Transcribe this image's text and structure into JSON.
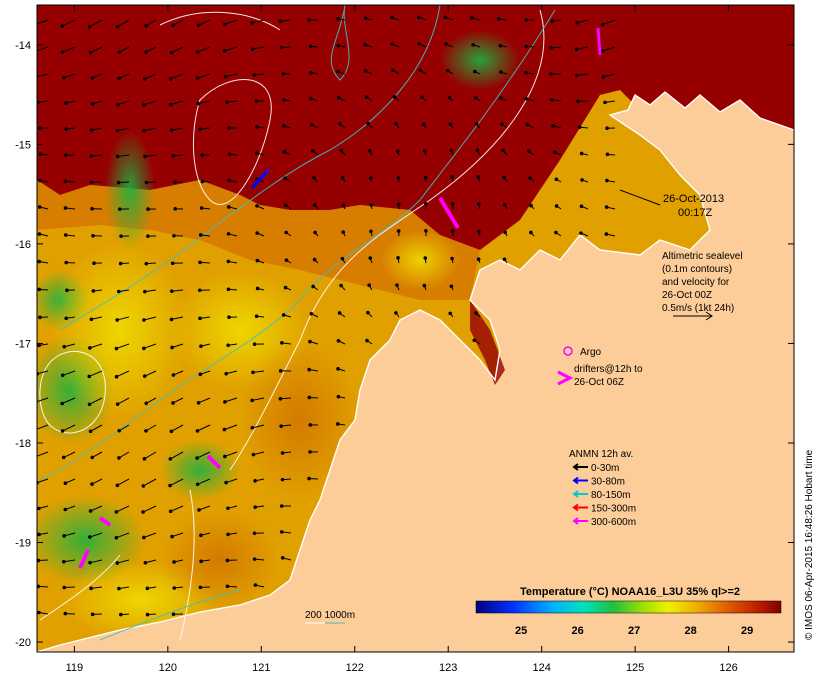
{
  "map": {
    "datetime_line1": "26-Oct-2013",
    "datetime_line2": "00:17Z",
    "altimetry_lines": [
      "Altimetric sealevel",
      "(0.1m contours)",
      "and velocity for",
      "26-Oct 00Z",
      "0.5m/s (1kt 24h)"
    ],
    "argo_label": "Argo",
    "drifters_line1": "drifters@12h to",
    "drifters_line2": "26-Oct 06Z",
    "anmn_title": "ANMN 12h av.",
    "anmn_legend": [
      {
        "label": "0-30m",
        "color": "#000000"
      },
      {
        "label": "30-80m",
        "color": "#0000ff"
      },
      {
        "label": "80-150m",
        "color": "#00cccc"
      },
      {
        "label": "150-300m",
        "color": "#ff0000"
      },
      {
        "label": "300-600m",
        "color": "#ff00ff"
      }
    ],
    "isobath_label": "200  1000m",
    "colorbar_title": "Temperature (°C) NOAA16_L3U 35% ql>=2",
    "colorbar_ticks": [
      "25",
      "26",
      "27",
      "28",
      "29"
    ],
    "colorbar_range": [
      24.2,
      29.6
    ],
    "credit": "© IMOS 06-Apr-2015 16:48:26 Hobart time",
    "x_ticks": [
      119,
      120,
      121,
      122,
      123,
      124,
      125,
      126
    ],
    "y_ticks": [
      -14,
      -15,
      -16,
      -17,
      -18,
      -19,
      -20
    ],
    "lon_range": [
      118.6,
      126.7
    ],
    "lat_range": [
      -20.1,
      -13.6
    ],
    "colors": {
      "land": "#fccc99",
      "hot": "#960000",
      "argo": "#ff00ff"
    }
  }
}
